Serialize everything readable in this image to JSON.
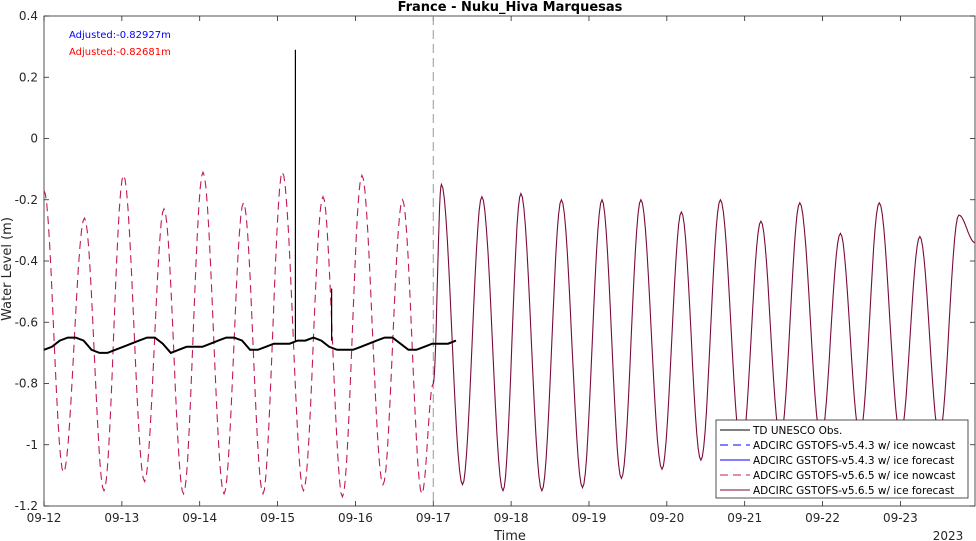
{
  "chart_data": {
    "type": "line",
    "title": "France - Nuku_Hiva Marquesas",
    "xlabel": "Time",
    "ylabel": "Water Level (m)",
    "xlim": [
      "2023-09-12T00:00",
      "2023-09-23T23:00"
    ],
    "ylim": [
      -1.2,
      0.4
    ],
    "yticks": [
      -1.2,
      -1,
      -0.8,
      -0.6,
      -0.4,
      -0.2,
      0,
      0.2,
      0.4
    ],
    "ytick_labels": [
      "-1.2",
      "-1",
      "-0.8",
      "-0.6",
      "-0.4",
      "-0.2",
      "0",
      "0.2",
      "0.4"
    ],
    "xtick_labels": [
      "09-12",
      "09-13",
      "09-14",
      "09-15",
      "09-16",
      "09-17",
      "09-18",
      "09-19",
      "09-20",
      "09-21",
      "09-22",
      "09-23"
    ],
    "x_year_label": "2023",
    "nowcast_forecast_divider": "2023-09-17T00:00",
    "annotations": [
      {
        "text": "Adjusted:-0.82927m",
        "color": "#0000ff"
      },
      {
        "text": "Adjusted:-0.82681m",
        "color": "#ff0000"
      }
    ],
    "legend_position": "bottom-right",
    "series": [
      {
        "name": "TD UNESCO Obs.",
        "color": "#000000",
        "style": "solid",
        "x_range": [
          "2023-09-12T00:00",
          "2023-09-17T07:00"
        ],
        "y": [
          -0.69,
          -0.68,
          -0.66,
          -0.65,
          -0.65,
          -0.66,
          -0.69,
          -0.7,
          -0.7,
          -0.69,
          -0.68,
          -0.67,
          -0.66,
          -0.65,
          -0.65,
          -0.67,
          -0.7,
          -0.69,
          -0.68,
          -0.68,
          -0.68,
          -0.67,
          -0.66,
          -0.65,
          -0.65,
          -0.66,
          -0.69,
          -0.69,
          -0.68,
          -0.67,
          -0.67,
          -0.67,
          -0.66,
          -0.66,
          -0.65,
          -0.66,
          -0.68,
          -0.69,
          -0.69,
          -0.69,
          -0.68,
          -0.67,
          -0.66,
          -0.65,
          -0.65,
          -0.67,
          -0.69,
          -0.69,
          -0.68,
          -0.67,
          -0.67,
          -0.67,
          -0.66
        ],
        "spikes": [
          {
            "x": "2023-09-15T05:30",
            "y": 0.29
          },
          {
            "x": "2023-09-15T16:40",
            "y": -0.49
          }
        ]
      },
      {
        "name": "ADCIRC GSTOFS-v5.4.3 w/ ice nowcast",
        "color": "#0000ff",
        "style": "dashed"
      },
      {
        "name": "ADCIRC GSTOFS-v5.4.3 w/ ice forecast",
        "color": "#0000ff",
        "style": "solid"
      },
      {
        "name": "ADCIRC GSTOFS-v5.6.5 w/ ice nowcast",
        "color": "#c2185b",
        "style": "dashed",
        "x_range": [
          "2023-09-12T00:00",
          "2023-09-17T00:00"
        ],
        "extrema": [
          {
            "t": "2023-09-12T00:00",
            "y": -0.17
          },
          {
            "t": "2023-09-12T06:00",
            "y": -1.09
          },
          {
            "t": "2023-09-12T12:30",
            "y": -0.26
          },
          {
            "t": "2023-09-12T18:30",
            "y": -1.15
          },
          {
            "t": "2023-09-13T00:30",
            "y": -0.12
          },
          {
            "t": "2023-09-13T07:00",
            "y": -1.12
          },
          {
            "t": "2023-09-13T13:00",
            "y": -0.23
          },
          {
            "t": "2023-09-13T19:00",
            "y": -1.16
          },
          {
            "t": "2023-09-14T01:00",
            "y": -0.11
          },
          {
            "t": "2023-09-14T07:30",
            "y": -1.16
          },
          {
            "t": "2023-09-14T13:30",
            "y": -0.21
          },
          {
            "t": "2023-09-14T19:30",
            "y": -1.16
          },
          {
            "t": "2023-09-15T01:30",
            "y": -0.11
          },
          {
            "t": "2023-09-15T08:00",
            "y": -1.15
          },
          {
            "t": "2023-09-15T14:00",
            "y": -0.19
          },
          {
            "t": "2023-09-15T20:00",
            "y": -1.17
          },
          {
            "t": "2023-09-16T02:00",
            "y": -0.12
          },
          {
            "t": "2023-09-16T08:30",
            "y": -1.13
          },
          {
            "t": "2023-09-16T14:30",
            "y": -0.2
          },
          {
            "t": "2023-09-16T20:30",
            "y": -1.16
          },
          {
            "t": "2023-09-17T00:00",
            "y": -0.8
          }
        ]
      },
      {
        "name": "ADCIRC GSTOFS-v5.6.5 w/ ice forecast",
        "color": "#7a0a3c",
        "style": "solid",
        "x_range": [
          "2023-09-17T00:00",
          "2023-09-23T23:00"
        ],
        "extrema": [
          {
            "t": "2023-09-17T00:00",
            "y": -0.8
          },
          {
            "t": "2023-09-17T02:30",
            "y": -0.15
          },
          {
            "t": "2023-09-17T09:00",
            "y": -1.13
          },
          {
            "t": "2023-09-17T15:00",
            "y": -0.19
          },
          {
            "t": "2023-09-17T21:30",
            "y": -1.15
          },
          {
            "t": "2023-09-18T03:00",
            "y": -0.18
          },
          {
            "t": "2023-09-18T09:30",
            "y": -1.15
          },
          {
            "t": "2023-09-18T15:30",
            "y": -0.2
          },
          {
            "t": "2023-09-18T22:00",
            "y": -1.14
          },
          {
            "t": "2023-09-19T04:00",
            "y": -0.2
          },
          {
            "t": "2023-09-19T10:00",
            "y": -1.11
          },
          {
            "t": "2023-09-19T16:00",
            "y": -0.2
          },
          {
            "t": "2023-09-19T22:30",
            "y": -1.08
          },
          {
            "t": "2023-09-20T04:30",
            "y": -0.24
          },
          {
            "t": "2023-09-20T10:30",
            "y": -1.05
          },
          {
            "t": "2023-09-20T16:30",
            "y": -0.2
          },
          {
            "t": "2023-09-20T23:00",
            "y": -1.02
          },
          {
            "t": "2023-09-21T05:00",
            "y": -0.27
          },
          {
            "t": "2023-09-21T11:00",
            "y": -0.98
          },
          {
            "t": "2023-09-21T17:00",
            "y": -0.21
          },
          {
            "t": "2023-09-21T23:30",
            "y": -0.98
          },
          {
            "t": "2023-09-22T05:30",
            "y": -0.31
          },
          {
            "t": "2023-09-22T11:30",
            "y": -0.97
          },
          {
            "t": "2023-09-22T17:30",
            "y": -0.21
          },
          {
            "t": "2023-09-23T00:00",
            "y": -0.97
          },
          {
            "t": "2023-09-23T06:00",
            "y": -0.32
          },
          {
            "t": "2023-09-23T12:00",
            "y": -0.97
          },
          {
            "t": "2023-09-23T18:00",
            "y": -0.25
          },
          {
            "t": "2023-09-23T23:00",
            "y": -0.34
          }
        ]
      }
    ]
  }
}
